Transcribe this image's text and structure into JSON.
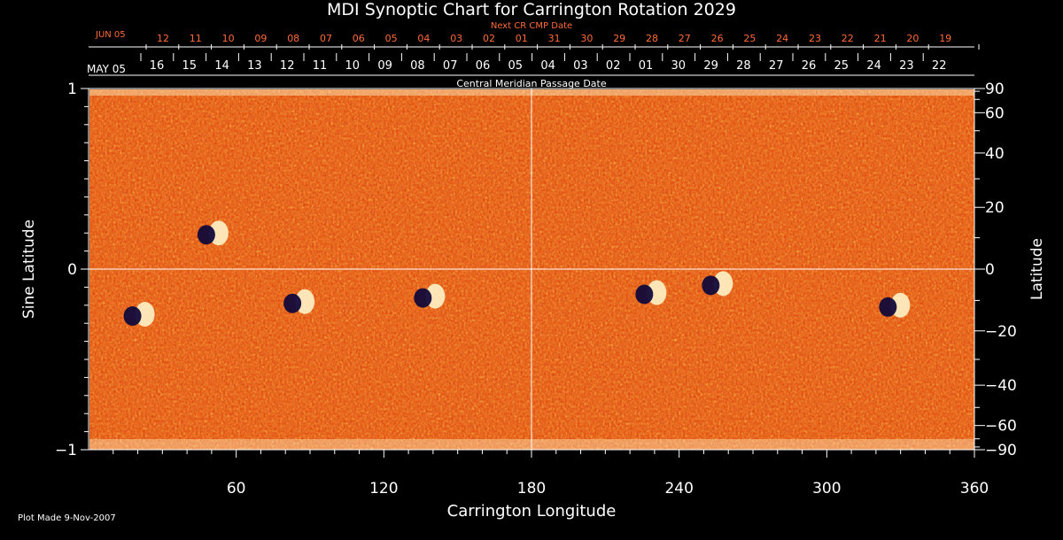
{
  "chart_data": {
    "type": "heatmap",
    "title": "MDI Synoptic Chart for Carrington Rotation 2029",
    "xlabel": "Carrington Longitude",
    "ylabel_left": "Sine Latitude",
    "ylabel_right": "Latitude",
    "xlim": [
      0,
      360
    ],
    "ylim": [
      -1,
      1
    ],
    "x_ticks": [
      "60",
      "120",
      "180",
      "240",
      "300",
      "360"
    ],
    "left_y_ticks": [
      "1",
      "0",
      "−1"
    ],
    "right_y_ticks": [
      "90",
      "60",
      "40",
      "20",
      "0",
      "−20",
      "−40",
      "−60",
      "−90"
    ],
    "next_cr_label": "Next CR CMP Date",
    "next_cr_month": "JUN 05",
    "next_cr_dates": [
      "12",
      "11",
      "10",
      "09",
      "08",
      "07",
      "06",
      "05",
      "04",
      "03",
      "02",
      "01",
      "31",
      "30",
      "29",
      "28",
      "27",
      "26",
      "25",
      "24",
      "23",
      "22",
      "21",
      "20",
      "19"
    ],
    "cmp_label": "Central Meridian Passage Date",
    "cmp_month": "MAY 05",
    "cmp_dates": [
      "16",
      "15",
      "14",
      "13",
      "12",
      "11",
      "10",
      "09",
      "08",
      "07",
      "06",
      "05",
      "04",
      "03",
      "02",
      "01",
      "30",
      "29",
      "28",
      "27",
      "26",
      "25",
      "24",
      "23",
      "22"
    ],
    "field_colors": {
      "background": "#e03c08",
      "positive": "#fff3c8",
      "negative": "#120a3a"
    },
    "active_regions": [
      {
        "lon": 50,
        "sinlat": 0.2,
        "polarity": "bipolar"
      },
      {
        "lon": 20,
        "sinlat": -0.25,
        "polarity": "bipolar"
      },
      {
        "lon": 85,
        "sinlat": -0.18,
        "polarity": "bipolar"
      },
      {
        "lon": 138,
        "sinlat": -0.15,
        "polarity": "bipolar"
      },
      {
        "lon": 228,
        "sinlat": -0.13,
        "polarity": "bipolar"
      },
      {
        "lon": 255,
        "sinlat": -0.08,
        "polarity": "bipolar"
      },
      {
        "lon": 327,
        "sinlat": -0.2,
        "polarity": "bipolar"
      }
    ]
  },
  "footer": {
    "plot_made": "Plot Made  9-Nov-2007"
  }
}
